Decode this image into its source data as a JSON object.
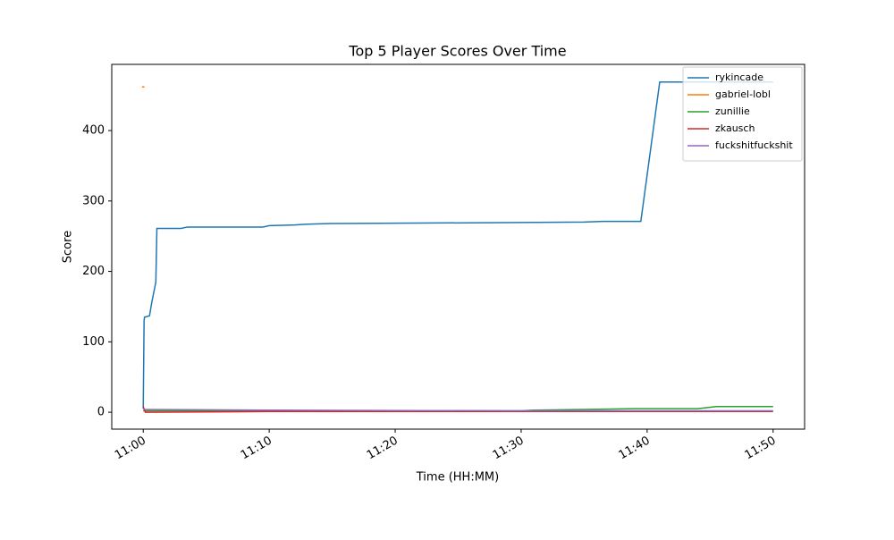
{
  "chart_data": {
    "type": "line",
    "title": "Top 5 Player Scores Over Time",
    "x_label": "Time (HH:MM)",
    "y_label": "Score",
    "xlim": [
      "10:57:30",
      "11:52:30"
    ],
    "xticks": [
      "11:00",
      "11:10",
      "11:20",
      "11:30",
      "11:40",
      "11:50"
    ],
    "ylim": [
      -24,
      494
    ],
    "yticks": [
      0,
      100,
      200,
      300,
      400
    ],
    "legend": "upper right",
    "grid": false,
    "series": [
      {
        "name": "rykincade",
        "color": "#1f77b4",
        "x": [
          "11:00:00",
          "11:00:04",
          "11:00:06",
          "11:00:30",
          "11:00:40",
          "11:01:00",
          "11:01:05",
          "11:03:00",
          "11:03:30",
          "11:09:30",
          "11:10:00",
          "11:12:00",
          "11:13:00",
          "11:15:00",
          "11:26:00",
          "11:35:00",
          "11:36:30",
          "11:39:30",
          "11:41:00",
          "11:50:00"
        ],
        "values": [
          5,
          130,
          135,
          137,
          155,
          185,
          261,
          261,
          263,
          263,
          265,
          266,
          267,
          268,
          269,
          270,
          271,
          271,
          469,
          469
        ]
      },
      {
        "name": "gabriel-lobl",
        "color": "#ff7f0e",
        "x": [
          "10:59:54",
          "11:00:06"
        ],
        "values": [
          462,
          462
        ]
      },
      {
        "name": "zunillie",
        "color": "#2ca02c",
        "x": [
          "11:00:00",
          "11:30:00",
          "11:31:00",
          "11:35:00",
          "11:39:00",
          "11:44:00",
          "11:45:30",
          "11:50:00"
        ],
        "values": [
          2,
          2,
          3,
          4,
          5,
          5,
          8,
          8
        ]
      },
      {
        "name": "zkausch",
        "color": "#d62728",
        "x": [
          "11:00:00",
          "11:00:10",
          "11:10:00",
          "11:50:00"
        ],
        "values": [
          8,
          0,
          1,
          1
        ]
      },
      {
        "name": "fuckshitfuckshit",
        "color": "#9467bd",
        "x": [
          "11:00:00",
          "11:10:00",
          "11:30:00",
          "11:50:00"
        ],
        "values": [
          4,
          3,
          2,
          2
        ]
      }
    ]
  }
}
